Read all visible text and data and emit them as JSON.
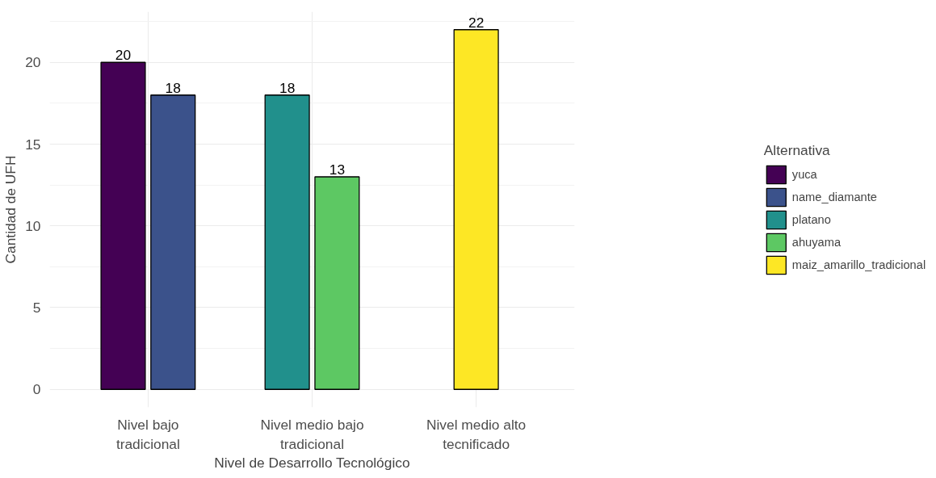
{
  "chart_data": {
    "type": "bar",
    "xlabel": "Nivel de Desarrollo Tecnológico",
    "ylabel": "Cantidad de UFH",
    "legend_title": "Alternativa",
    "categories": [
      "Nivel bajo\ntradicional",
      "Nivel medio bajo\ntradicional",
      "Nivel medio alto\ntecnificado"
    ],
    "series": [
      {
        "name": "yuca",
        "color": "#440154",
        "values": [
          20,
          null,
          null
        ]
      },
      {
        "name": "name_diamante",
        "color": "#3b528b",
        "values": [
          18,
          null,
          null
        ]
      },
      {
        "name": "platano",
        "color": "#21908c",
        "values": [
          null,
          18,
          null
        ]
      },
      {
        "name": "ahuyama",
        "color": "#5dc863",
        "values": [
          null,
          13,
          null
        ]
      },
      {
        "name": "maiz_amarillo_tradicional",
        "color": "#fde725",
        "values": [
          null,
          null,
          22
        ]
      }
    ],
    "ylim": [
      -1.1,
      23.1
    ],
    "yticks": [
      0,
      5,
      10,
      15,
      20
    ],
    "grid": true,
    "legend": "right",
    "data_labels": true
  }
}
